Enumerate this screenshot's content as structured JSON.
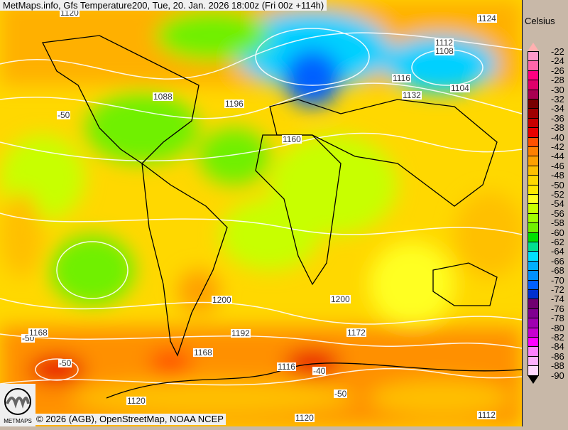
{
  "header": {
    "title": "MetMaps.info, Gfs Temperature200, Tue, 20. Jan. 2026 18:00z (Fri 00z +114h)"
  },
  "footer": {
    "credits": "© 2026 (AGB), OpenStreetMap, NOAA NCEP",
    "logo_text": "METMAPS"
  },
  "legend": {
    "unit": "Celsius",
    "labels": [
      "-22",
      "-24",
      "-26",
      "-28",
      "-30",
      "-32",
      "-34",
      "-36",
      "-38",
      "-40",
      "-42",
      "-44",
      "-46",
      "-48",
      "-50",
      "-52",
      "-54",
      "-56",
      "-58",
      "-60",
      "-62",
      "-64",
      "-66",
      "-68",
      "-70",
      "-72",
      "-74",
      "-76",
      "-78",
      "-80",
      "-82",
      "-84",
      "-86",
      "-88",
      "-90"
    ],
    "colors": [
      "#ff99c8",
      "#ff66aa",
      "#ff0080",
      "#e0006a",
      "#a80050",
      "#780000",
      "#a00000",
      "#c80000",
      "#e80000",
      "#ff5000",
      "#ff8000",
      "#ffa000",
      "#ffc000",
      "#ffd800",
      "#ffe800",
      "#ffff20",
      "#c8ff00",
      "#a0ff00",
      "#70f000",
      "#00e000",
      "#00e090",
      "#00e0ff",
      "#00b0ff",
      "#0090ff",
      "#0060ff",
      "#0030d0",
      "#700070",
      "#800090",
      "#a000b0",
      "#c800d0",
      "#ff00ff",
      "#ff80ff",
      "#ffb0ff",
      "#ffd8ff"
    ],
    "top_arrow_color": "#ffb0b0",
    "bottom_arrow_color": "#ffffff"
  },
  "contour_labels": [
    {
      "text": "1120"
    },
    {
      "text": "1124"
    },
    {
      "text": "1108"
    },
    {
      "text": "1112"
    },
    {
      "text": "1104"
    },
    {
      "text": "1116"
    },
    {
      "text": "1132"
    },
    {
      "text": "1088"
    },
    {
      "text": "1196"
    },
    {
      "text": "1160"
    },
    {
      "text": "-50"
    },
    {
      "text": "1200"
    },
    {
      "text": "1192"
    },
    {
      "text": "1168"
    },
    {
      "text": "1172"
    },
    {
      "text": "-50"
    },
    {
      "text": "-40"
    },
    {
      "text": "1116"
    },
    {
      "text": "1120"
    },
    {
      "text": "1120"
    },
    {
      "text": "1112"
    },
    {
      "text": "-50"
    },
    {
      "text": "1200"
    },
    {
      "text": "-50"
    },
    {
      "text": "1168"
    }
  ]
}
